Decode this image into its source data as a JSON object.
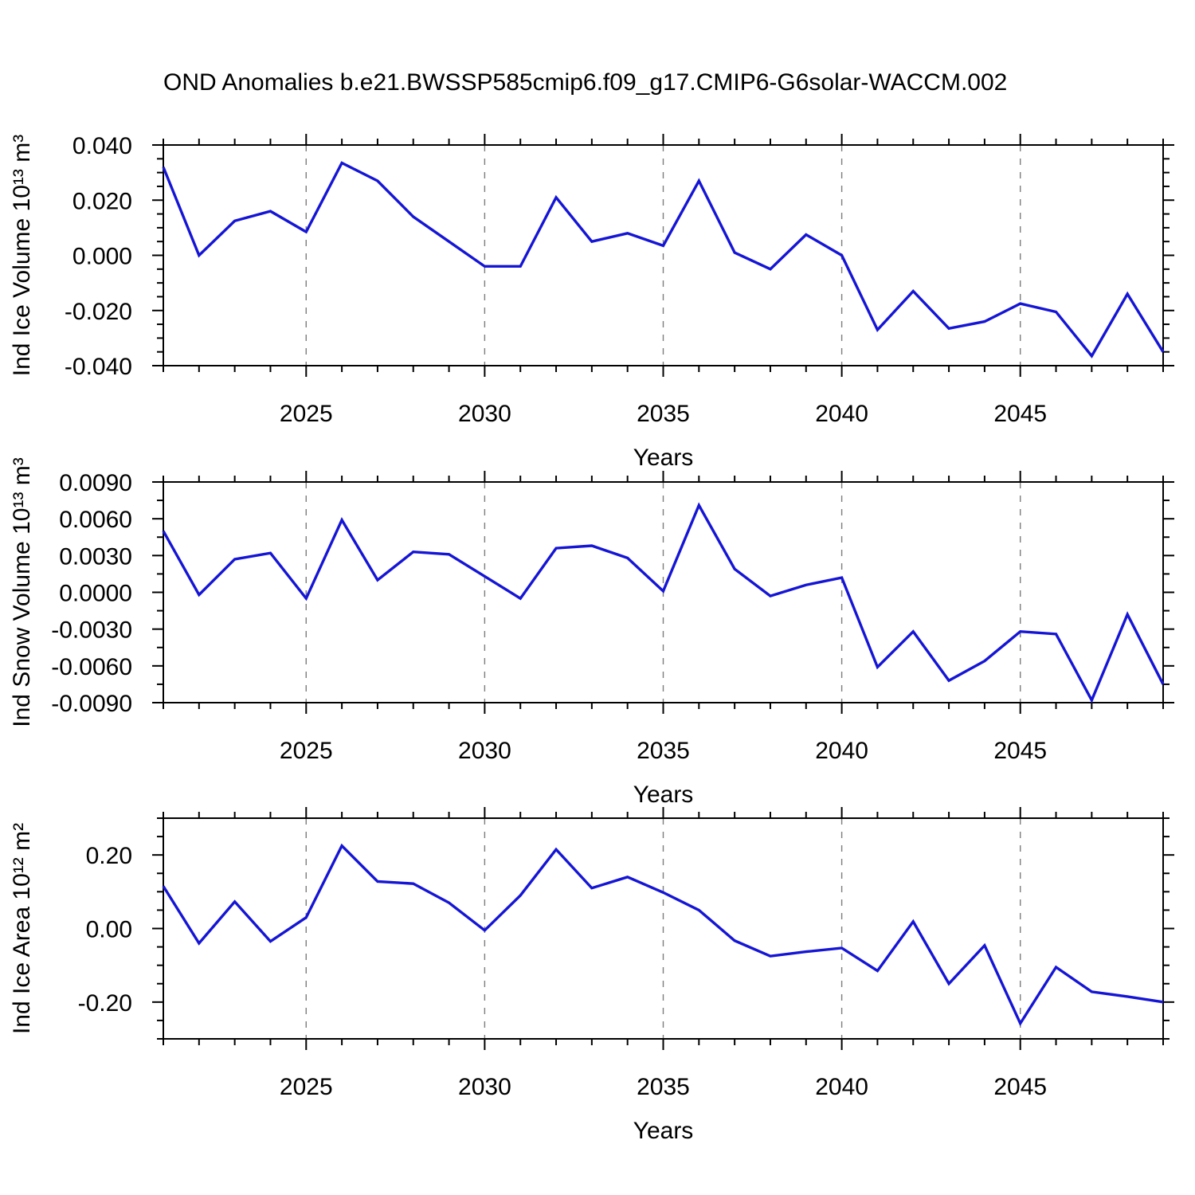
{
  "page": {
    "background": "#ffffff"
  },
  "title": "OND Anomalies b.e21.BWSSP585cmip6.f09_g17.CMIP6-G6solar-WACCM.002",
  "style": {
    "line_color": "#1515d6",
    "axis_color": "#000000",
    "grid_color": "#7d7d7d",
    "text_color": "#000000"
  },
  "chart_data": [
    {
      "type": "line",
      "id": "ice-volume",
      "ylabel": "Ind Ice Volume 10¹³ m³",
      "xlabel": "Years",
      "legend": null,
      "grid": "vertical-dashed-at-x-majors",
      "x": [
        2021,
        2022,
        2023,
        2024,
        2025,
        2026,
        2027,
        2028,
        2029,
        2030,
        2031,
        2032,
        2033,
        2034,
        2035,
        2036,
        2037,
        2038,
        2039,
        2040,
        2041,
        2042,
        2043,
        2044,
        2045,
        2046,
        2047,
        2048,
        2049
      ],
      "values": [
        0.032,
        0.0,
        0.0125,
        0.016,
        0.0085,
        0.0335,
        0.027,
        0.014,
        0.005,
        -0.004,
        -0.004,
        0.021,
        0.005,
        0.008,
        0.0035,
        0.027,
        0.001,
        -0.005,
        0.0075,
        0.0,
        -0.027,
        -0.013,
        -0.0265,
        -0.024,
        -0.0175,
        -0.0205,
        -0.0365,
        -0.014,
        -0.035
      ],
      "xlim": [
        2021,
        2049
      ],
      "ylim": [
        -0.04,
        0.04
      ],
      "xtick_values": [
        2025,
        2030,
        2035,
        2040,
        2045
      ],
      "xtick_labels": [
        "2025",
        "2030",
        "2035",
        "2040",
        "2045"
      ],
      "x_minor_step": 1,
      "ytick_values": [
        0.04,
        0.02,
        0.0,
        -0.02,
        -0.04
      ],
      "ytick_labels": [
        "0.040",
        "0.020",
        "0.000",
        "-0.020",
        "-0.040"
      ],
      "y_minor_step": 0.005
    },
    {
      "type": "line",
      "id": "snow-volume",
      "ylabel": "Ind Snow Volume 10¹³ m³",
      "xlabel": "Years",
      "legend": null,
      "grid": "vertical-dashed-at-x-majors",
      "x": [
        2021,
        2022,
        2023,
        2024,
        2025,
        2026,
        2027,
        2028,
        2029,
        2030,
        2031,
        2032,
        2033,
        2034,
        2035,
        2036,
        2037,
        2038,
        2039,
        2040,
        2041,
        2042,
        2043,
        2044,
        2045,
        2046,
        2047,
        2048,
        2049
      ],
      "values": [
        0.005,
        -0.0002,
        0.0027,
        0.0032,
        -0.0005,
        0.0059,
        0.001,
        0.0033,
        0.0031,
        0.0013,
        -0.0005,
        0.0036,
        0.0038,
        0.0028,
        0.0001,
        0.0071,
        0.0019,
        -0.0003,
        0.0006,
        0.0012,
        -0.0061,
        -0.0032,
        -0.0072,
        -0.0056,
        -0.0032,
        -0.0034,
        -0.0088,
        -0.0018,
        -0.0075
      ],
      "xlim": [
        2021,
        2049
      ],
      "ylim": [
        -0.009,
        0.009
      ],
      "xtick_values": [
        2025,
        2030,
        2035,
        2040,
        2045
      ],
      "xtick_labels": [
        "2025",
        "2030",
        "2035",
        "2040",
        "2045"
      ],
      "x_minor_step": 1,
      "ytick_values": [
        0.009,
        0.006,
        0.003,
        0.0,
        -0.003,
        -0.006,
        -0.009
      ],
      "ytick_labels": [
        "0.0090",
        "0.0060",
        "0.0030",
        "0.0000",
        "-0.0030",
        "-0.0060",
        "-0.0090"
      ],
      "y_minor_step": 0.0015
    },
    {
      "type": "line",
      "id": "ice-area",
      "ylabel": "Ind Ice Area 10¹² m²",
      "xlabel": "Years",
      "legend": null,
      "grid": "vertical-dashed-at-x-majors",
      "x": [
        2021,
        2022,
        2023,
        2024,
        2025,
        2026,
        2027,
        2028,
        2029,
        2030,
        2031,
        2032,
        2033,
        2034,
        2035,
        2036,
        2037,
        2038,
        2039,
        2040,
        2041,
        2042,
        2043,
        2044,
        2045,
        2046,
        2047,
        2048,
        2049
      ],
      "values": [
        0.115,
        -0.04,
        0.073,
        -0.035,
        0.03,
        0.225,
        0.128,
        0.122,
        0.07,
        -0.005,
        0.09,
        0.215,
        0.11,
        0.14,
        0.098,
        0.05,
        -0.033,
        -0.075,
        -0.063,
        -0.053,
        -0.115,
        0.019,
        -0.15,
        -0.046,
        -0.258,
        -0.105,
        -0.172,
        -0.185,
        -0.2
      ],
      "xlim": [
        2021,
        2049
      ],
      "ylim": [
        -0.3,
        0.3
      ],
      "xtick_values": [
        2025,
        2030,
        2035,
        2040,
        2045
      ],
      "xtick_labels": [
        "2025",
        "2030",
        "2035",
        "2040",
        "2045"
      ],
      "x_minor_step": 1,
      "ytick_values": [
        0.2,
        0.0,
        -0.2
      ],
      "ytick_labels": [
        "0.20",
        "0.00",
        "-0.20"
      ],
      "y_minor_step": 0.05
    }
  ]
}
